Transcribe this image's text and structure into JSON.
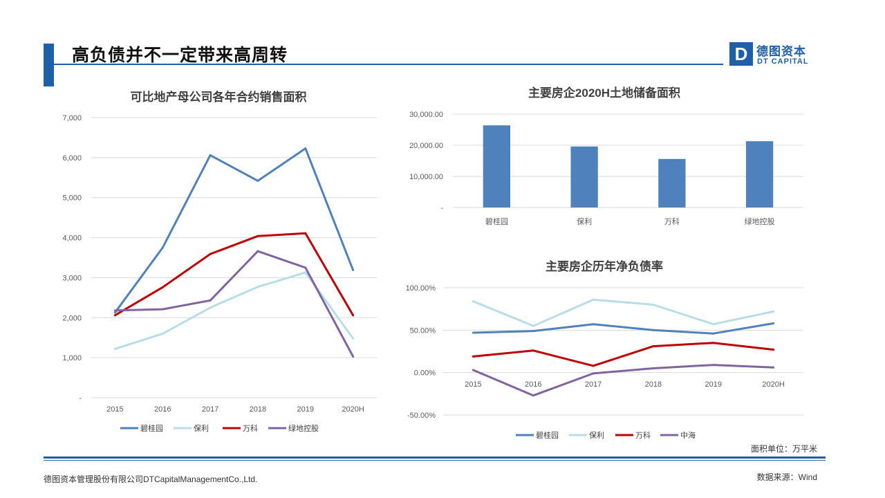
{
  "page": {
    "title": "高负债并不一定带来高周转",
    "logo_cn": "德图资本",
    "logo_en": "DT CAPITAL",
    "logo_mark": "D",
    "unit_note": "面积单位：万平米",
    "footer_left": "德图资本管理股份有限公司DTCapitalManagementCo.,Ltd.",
    "footer_right": "数据来源：Wind",
    "accent_color": "#1f5fa8"
  },
  "chart_data": [
    {
      "type": "line",
      "title": "可比地产母公司各年合约销售面积",
      "x": [
        "2015",
        "2016",
        "2017",
        "2018",
        "2019",
        "2020H"
      ],
      "ylim": [
        0,
        7000
      ],
      "yticks": [
        0,
        1000,
        2000,
        3000,
        4000,
        5000,
        6000,
        7000
      ],
      "ytick_labels": [
        "-",
        "1,000",
        "2,000",
        "3,000",
        "4,000",
        "5,000",
        "6,000",
        "7,000"
      ],
      "grid": true,
      "legend_position": "bottom",
      "series": [
        {
          "name": "碧桂园",
          "color": "#4f81bd",
          "values": [
            2130,
            3750,
            6060,
            5420,
            6230,
            3190
          ]
        },
        {
          "name": "保利",
          "color": "#b7dde8",
          "values": [
            1220,
            1600,
            2250,
            2770,
            3130,
            1480
          ]
        },
        {
          "name": "万科",
          "color": "#c00000",
          "values": [
            2060,
            2760,
            3590,
            4040,
            4110,
            2060
          ]
        },
        {
          "name": "绿地控股",
          "color": "#8064a2",
          "values": [
            2180,
            2210,
            2430,
            3660,
            3250,
            1030
          ]
        }
      ]
    },
    {
      "type": "bar",
      "title": "主要房企2020H土地储备面积",
      "categories": [
        "碧桂园",
        "保利",
        "万科",
        "绿地控股"
      ],
      "values": [
        26400,
        19600,
        15600,
        21300
      ],
      "ylim": [
        0,
        30000
      ],
      "yticks": [
        0,
        10000,
        20000,
        30000
      ],
      "ytick_labels": [
        "-",
        "10,000.00",
        "20,000.00",
        "30,000.00"
      ],
      "grid": true,
      "color": "#4f81bd"
    },
    {
      "type": "line",
      "title": "主要房企历年净负债率",
      "x": [
        "2015",
        "2016",
        "2017",
        "2018",
        "2019",
        "2020H"
      ],
      "ylim": [
        -0.5,
        1.0
      ],
      "yticks": [
        -0.5,
        0,
        0.5,
        1.0
      ],
      "ytick_labels": [
        "-50.00%",
        "0.00%",
        "50.00%",
        "100.00%"
      ],
      "grid": true,
      "legend_position": "bottom",
      "series": [
        {
          "name": "碧桂园",
          "color": "#4f81bd",
          "values": [
            0.47,
            0.49,
            0.57,
            0.5,
            0.46,
            0.58
          ]
        },
        {
          "name": "保利",
          "color": "#b7dde8",
          "values": [
            0.84,
            0.55,
            0.86,
            0.8,
            0.57,
            0.72
          ]
        },
        {
          "name": "万科",
          "color": "#c00000",
          "values": [
            0.19,
            0.26,
            0.08,
            0.31,
            0.35,
            0.27
          ]
        },
        {
          "name": "中海",
          "color": "#8064a2",
          "values": [
            0.03,
            -0.27,
            -0.01,
            0.05,
            0.09,
            0.06
          ]
        }
      ]
    }
  ]
}
